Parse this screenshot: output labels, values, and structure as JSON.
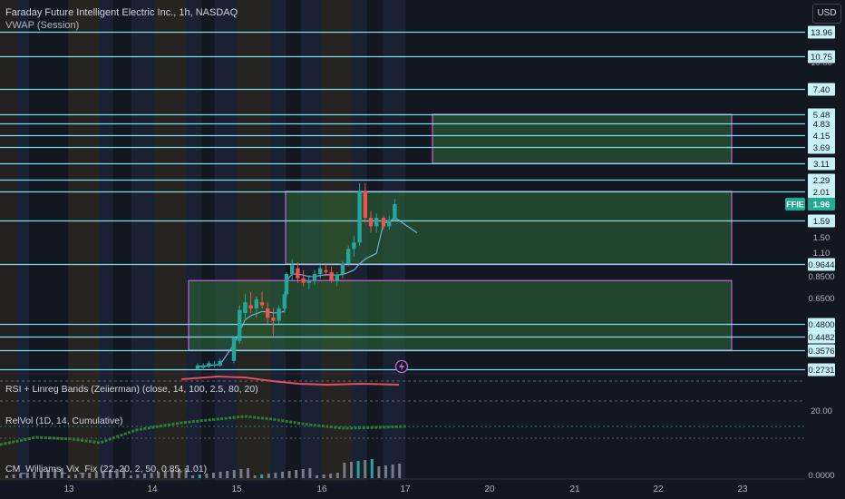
{
  "header": {
    "title": "Faraday Future Intelligent Electric Inc., 1h, NASDAQ",
    "vwap_label": "VWAP (Session)",
    "currency_button": "USD"
  },
  "indicators": [
    {
      "label": "RSI + Linreg Bands (Zeiierman) (close, 14, 100, 2.5, 80, 20)"
    },
    {
      "label": "RelVol (1D, 14, Cumulative)"
    },
    {
      "label": "CM_Williams_Vix_Fix (22, 20, 2, 50, 0.85, 1.01)"
    }
  ],
  "colors": {
    "background": "#131722",
    "level_line": "#7fdbe8",
    "box_border": "#c266d6",
    "box_fill": "#2e6b36",
    "up_candle": "#26a69a",
    "vwap": "#6db3d6",
    "price_tag": "#22ab94"
  },
  "chart_data": {
    "type": "candlestick",
    "symbol": "FFIE",
    "last_price": "1.96",
    "x_tick_labels": [
      "13",
      "14",
      "15",
      "16",
      "17",
      "20",
      "21",
      "22",
      "23"
    ],
    "y_tick_labels": [
      "10.00",
      "1.50",
      "1.10",
      "0.8500",
      "0.6500"
    ],
    "price_levels": [
      "13.96",
      "10.75",
      "7.40",
      "5.48",
      "4.83",
      "4.15",
      "3.69",
      "3.11",
      "2.29",
      "2.01",
      "1.59",
      "0.9644",
      "0.4800",
      "0.4482",
      "0.3576",
      "0.2731"
    ],
    "zones": [
      {
        "from_day": "16",
        "to_day": "23",
        "low": 3.11,
        "high": 5.48
      },
      {
        "from_day": "16",
        "to_day": "23",
        "low": 0.9644,
        "high": 2.01
      },
      {
        "from_day": "14",
        "to_day": "23",
        "low": 0.3576,
        "high": 0.8
      }
    ],
    "candles": [
      {
        "day": "14",
        "open": 0.275,
        "high": 0.3,
        "low": 0.27,
        "close": 0.29
      },
      {
        "day": "14",
        "open": 0.28,
        "high": 0.3,
        "low": 0.27,
        "close": 0.29
      },
      {
        "day": "14",
        "open": 0.285,
        "high": 0.31,
        "low": 0.28,
        "close": 0.3
      },
      {
        "day": "14",
        "open": 0.29,
        "high": 0.31,
        "low": 0.28,
        "close": 0.295
      },
      {
        "day": "14",
        "open": 0.29,
        "high": 0.32,
        "low": 0.285,
        "close": 0.31
      },
      {
        "day": "15",
        "open": 0.31,
        "high": 0.45,
        "low": 0.3,
        "close": 0.44
      },
      {
        "day": "15",
        "open": 0.42,
        "high": 0.6,
        "low": 0.4,
        "close": 0.57
      },
      {
        "day": "15",
        "open": 0.55,
        "high": 0.68,
        "low": 0.5,
        "close": 0.62
      },
      {
        "day": "15",
        "open": 0.6,
        "high": 0.7,
        "low": 0.55,
        "close": 0.58
      },
      {
        "day": "15",
        "open": 0.58,
        "high": 0.66,
        "low": 0.52,
        "close": 0.64
      },
      {
        "day": "15",
        "open": 0.62,
        "high": 0.7,
        "low": 0.58,
        "close": 0.6
      },
      {
        "day": "15",
        "open": 0.58,
        "high": 0.62,
        "low": 0.48,
        "close": 0.52
      },
      {
        "day": "15",
        "open": 0.52,
        "high": 0.58,
        "low": 0.45,
        "close": 0.5
      },
      {
        "day": "15",
        "open": 0.5,
        "high": 0.6,
        "low": 0.48,
        "close": 0.58
      },
      {
        "day": "15",
        "open": 0.58,
        "high": 0.7,
        "low": 0.55,
        "close": 0.68
      },
      {
        "day": "16",
        "open": 0.68,
        "high": 0.88,
        "low": 0.65,
        "close": 0.86
      },
      {
        "day": "16",
        "open": 0.86,
        "high": 1.02,
        "low": 0.8,
        "close": 0.95
      },
      {
        "day": "16",
        "open": 0.92,
        "high": 0.98,
        "low": 0.78,
        "close": 0.82
      },
      {
        "day": "16",
        "open": 0.82,
        "high": 0.9,
        "low": 0.75,
        "close": 0.78
      },
      {
        "day": "16",
        "open": 0.78,
        "high": 0.85,
        "low": 0.72,
        "close": 0.8
      },
      {
        "day": "16",
        "open": 0.8,
        "high": 0.9,
        "low": 0.76,
        "close": 0.86
      },
      {
        "day": "16",
        "open": 0.86,
        "high": 0.95,
        "low": 0.82,
        "close": 0.92
      },
      {
        "day": "16",
        "open": 0.9,
        "high": 0.96,
        "low": 0.84,
        "close": 0.88
      },
      {
        "day": "16",
        "open": 0.88,
        "high": 0.94,
        "low": 0.78,
        "close": 0.8
      },
      {
        "day": "16",
        "open": 0.8,
        "high": 0.88,
        "low": 0.75,
        "close": 0.85
      },
      {
        "day": "16",
        "open": 0.85,
        "high": 1.0,
        "low": 0.82,
        "close": 0.97
      },
      {
        "day": "16",
        "open": 0.97,
        "high": 1.2,
        "low": 0.94,
        "close": 1.15
      },
      {
        "day": "16",
        "open": 1.15,
        "high": 1.35,
        "low": 1.05,
        "close": 1.25
      },
      {
        "day": "16",
        "open": 1.25,
        "high": 2.2,
        "low": 1.2,
        "close": 2.01
      },
      {
        "day": "16",
        "open": 2.01,
        "high": 2.2,
        "low": 1.55,
        "close": 1.65
      },
      {
        "day": "16",
        "open": 1.65,
        "high": 1.8,
        "low": 1.4,
        "close": 1.5
      },
      {
        "day": "16",
        "open": 1.5,
        "high": 1.75,
        "low": 1.4,
        "close": 1.65
      },
      {
        "day": "17",
        "open": 1.65,
        "high": 1.7,
        "low": 1.45,
        "close": 1.5
      },
      {
        "day": "17",
        "open": 1.5,
        "high": 1.7,
        "low": 1.45,
        "close": 1.6
      },
      {
        "day": "17",
        "open": 1.6,
        "high": 1.98,
        "low": 1.58,
        "close": 1.96
      }
    ]
  }
}
